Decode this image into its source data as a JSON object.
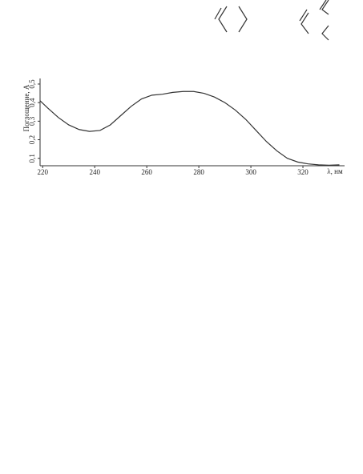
{
  "chart_data": {
    "type": "line",
    "x_label": "λ, нм",
    "y_label": "Поглощение, A",
    "x": [
      219,
      222,
      226,
      230,
      234,
      238,
      242,
      246,
      250,
      254,
      258,
      262,
      266,
      270,
      274,
      278,
      282,
      286,
      290,
      294,
      298,
      302,
      306,
      310,
      314,
      318,
      322,
      326,
      330,
      334
    ],
    "values": [
      0.41,
      0.37,
      0.32,
      0.28,
      0.255,
      0.245,
      0.25,
      0.28,
      0.33,
      0.38,
      0.42,
      0.44,
      0.445,
      0.455,
      0.46,
      0.46,
      0.45,
      0.43,
      0.4,
      0.36,
      0.31,
      0.25,
      0.19,
      0.14,
      0.1,
      0.08,
      0.07,
      0.065,
      0.063,
      0.065
    ],
    "color": "#333333",
    "xlim": [
      219,
      336
    ],
    "ylim": [
      0.06,
      0.53
    ],
    "xticks": [
      220,
      240,
      260,
      280,
      300,
      320
    ],
    "yticks": [
      {
        "value": 0.1,
        "label": "0,1"
      },
      {
        "value": 0.2,
        "label": "0,2"
      },
      {
        "value": 0.3,
        "label": "0,3"
      },
      {
        "value": 0.4,
        "label": "0,4"
      },
      {
        "value": 0.5,
        "label": "0,5"
      }
    ]
  }
}
